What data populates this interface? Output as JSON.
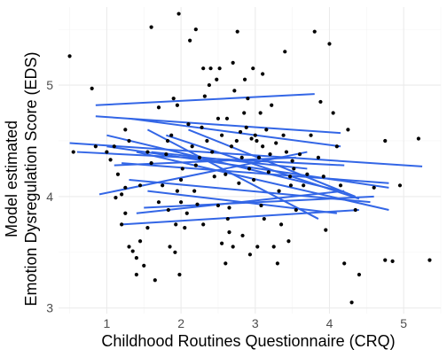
{
  "chart_data": {
    "type": "scatter",
    "title": "",
    "xlabel": "Childhood Routines Questionnaire (CRQ)",
    "ylabel_lines": [
      "Model estimated",
      "Emotion Dysregulation Score (EDS)"
    ],
    "xlim": [
      0.35,
      5.5
    ],
    "ylim": [
      2.95,
      5.7
    ],
    "x_ticks": [
      1,
      2,
      3,
      4,
      5
    ],
    "y_ticks": [
      3,
      4,
      5
    ],
    "grid": true,
    "colors": {
      "points": "#000000",
      "lines": "#3366e6",
      "major_grid": "#ebebeb",
      "minor_grid": "#f4f4f4"
    },
    "points": [
      [
        0.5,
        5.26
      ],
      [
        0.8,
        4.97
      ],
      [
        0.85,
        4.45
      ],
      [
        1.0,
        4.4
      ],
      [
        1.05,
        4.33
      ],
      [
        1.1,
        4.45
      ],
      [
        1.12,
        3.99
      ],
      [
        1.15,
        4.2
      ],
      [
        1.2,
        4.02
      ],
      [
        1.25,
        3.85
      ],
      [
        1.3,
        4.5
      ],
      [
        1.25,
        4.08
      ],
      [
        1.25,
        4.6
      ],
      [
        1.2,
        3.75
      ],
      [
        1.3,
        3.55
      ],
      [
        1.35,
        3.51
      ],
      [
        1.4,
        3.45
      ],
      [
        1.45,
        4.1
      ],
      [
        1.4,
        3.3
      ],
      [
        1.45,
        3.6
      ],
      [
        1.5,
        3.38
      ],
      [
        1.55,
        4.4
      ],
      [
        1.55,
        3.72
      ],
      [
        1.6,
        5.52
      ],
      [
        1.6,
        4.3
      ],
      [
        1.65,
        3.25
      ],
      [
        1.7,
        4.8
      ],
      [
        1.7,
        3.95
      ],
      [
        1.75,
        4.1
      ],
      [
        1.8,
        4.38
      ],
      [
        1.82,
        4.5
      ],
      [
        1.83,
        3.88
      ],
      [
        1.85,
        3.55
      ],
      [
        1.87,
        4.55
      ],
      [
        1.9,
        4.88
      ],
      [
        1.92,
        3.5
      ],
      [
        1.93,
        3.75
      ],
      [
        1.95,
        4.05
      ],
      [
        1.95,
        4.82
      ],
      [
        1.97,
        5.64
      ],
      [
        1.98,
        3.3
      ],
      [
        2.0,
        4.15
      ],
      [
        2.0,
        3.95
      ],
      [
        2.02,
        4.25
      ],
      [
        2.05,
        3.72
      ],
      [
        2.08,
        3.85
      ],
      [
        2.1,
        4.65
      ],
      [
        2.12,
        5.4
      ],
      [
        2.15,
        4.45
      ],
      [
        2.18,
        4.05
      ],
      [
        2.2,
        5.5
      ],
      [
        2.2,
        4.28
      ],
      [
        2.22,
        3.93
      ],
      [
        2.25,
        4.35
      ],
      [
        2.28,
        4.62
      ],
      [
        2.3,
        5.15
      ],
      [
        2.3,
        3.75
      ],
      [
        2.32,
        4.9
      ],
      [
        2.35,
        4.5
      ],
      [
        2.38,
        5.0
      ],
      [
        2.4,
        5.15
      ],
      [
        2.42,
        4.4
      ],
      [
        2.45,
        4.18
      ],
      [
        2.48,
        5.05
      ],
      [
        2.5,
        4.7
      ],
      [
        2.5,
        3.92
      ],
      [
        2.52,
        5.15
      ],
      [
        2.55,
        4.55
      ],
      [
        2.55,
        3.58
      ],
      [
        2.6,
        4.2
      ],
      [
        2.6,
        3.4
      ],
      [
        2.62,
        4.7
      ],
      [
        2.63,
        3.8
      ],
      [
        2.65,
        3.68
      ],
      [
        2.65,
        3.9
      ],
      [
        2.68,
        4.45
      ],
      [
        2.7,
        5.2
      ],
      [
        2.7,
        3.55
      ],
      [
        2.72,
        4.95
      ],
      [
        2.75,
        4.5
      ],
      [
        2.76,
        5.48
      ],
      [
        2.78,
        4.12
      ],
      [
        2.8,
        4.58
      ],
      [
        2.82,
        4.35
      ],
      [
        2.83,
        3.65
      ],
      [
        2.85,
        4.75
      ],
      [
        2.86,
        5.05
      ],
      [
        2.88,
        4.62
      ],
      [
        2.9,
        4.88
      ],
      [
        2.92,
        4.25
      ],
      [
        2.93,
        3.48
      ],
      [
        2.95,
        4.52
      ],
      [
        2.97,
        5.15
      ],
      [
        2.98,
        4.15
      ],
      [
        3.0,
        4.55
      ],
      [
        3.02,
        4.5
      ],
      [
        3.03,
        3.55
      ],
      [
        3.05,
        4.35
      ],
      [
        3.07,
        4.75
      ],
      [
        3.08,
        3.92
      ],
      [
        3.1,
        5.1
      ],
      [
        3.1,
        4.45
      ],
      [
        3.12,
        3.8
      ],
      [
        3.15,
        4.6
      ],
      [
        3.18,
        4.22
      ],
      [
        3.2,
        4.38
      ],
      [
        3.22,
        4.82
      ],
      [
        3.25,
        3.55
      ],
      [
        3.28,
        4.48
      ],
      [
        3.3,
        3.4
      ],
      [
        3.32,
        4.05
      ],
      [
        3.35,
        3.75
      ],
      [
        3.38,
        4.55
      ],
      [
        3.4,
        5.3
      ],
      [
        3.42,
        4.4
      ],
      [
        3.45,
        3.6
      ],
      [
        3.47,
        4.18
      ],
      [
        3.48,
        4.1
      ],
      [
        3.5,
        4.32
      ],
      [
        3.52,
        4.25
      ],
      [
        3.55,
        3.88
      ],
      [
        3.6,
        4.38
      ],
      [
        3.65,
        4.1
      ],
      [
        3.7,
        4.2
      ],
      [
        3.75,
        4.55
      ],
      [
        3.8,
        5.48
      ],
      [
        3.85,
        4.35
      ],
      [
        3.88,
        4.85
      ],
      [
        3.92,
        4.18
      ],
      [
        3.95,
        3.7
      ],
      [
        4.0,
        5.37
      ],
      [
        4.05,
        4.75
      ],
      [
        4.1,
        4.45
      ],
      [
        4.15,
        4.1
      ],
      [
        4.2,
        3.4
      ],
      [
        4.25,
        4.6
      ],
      [
        4.3,
        3.05
      ],
      [
        4.35,
        3.88
      ],
      [
        4.4,
        3.3
      ],
      [
        4.6,
        4.08
      ],
      [
        4.75,
        4.5
      ],
      [
        4.75,
        3.43
      ],
      [
        4.85,
        3.42
      ],
      [
        4.95,
        4.1
      ],
      [
        5.2,
        4.52
      ],
      [
        5.35,
        3.43
      ],
      [
        0.55,
        4.4
      ]
    ],
    "lines": [
      [
        0.85,
        4.82,
        3.8,
        4.92
      ],
      [
        0.85,
        4.72,
        4.15,
        4.57
      ],
      [
        1.3,
        4.7,
        4.15,
        4.45
      ],
      [
        0.5,
        4.48,
        5.25,
        4.27
      ],
      [
        0.6,
        4.4,
        4.2,
        4.28
      ],
      [
        1.0,
        4.45,
        4.8,
        4.08
      ],
      [
        1.2,
        4.3,
        4.8,
        4.12
      ],
      [
        1.0,
        4.55,
        4.15,
        4.05
      ],
      [
        1.4,
        4.4,
        4.8,
        3.88
      ],
      [
        1.1,
        4.28,
        3.55,
        4.35
      ],
      [
        1.3,
        4.15,
        4.55,
        3.95
      ],
      [
        1.55,
        4.6,
        3.85,
        3.8
      ],
      [
        1.8,
        4.55,
        4.4,
        3.98
      ],
      [
        1.55,
        4.05,
        4.1,
        3.85
      ],
      [
        1.5,
        3.9,
        4.6,
        4.0
      ],
      [
        1.4,
        3.85,
        4.2,
        4.05
      ],
      [
        1.2,
        3.75,
        4.4,
        3.88
      ],
      [
        0.9,
        4.02,
        3.7,
        4.4
      ],
      [
        1.6,
        4.4,
        3.7,
        4.25
      ],
      [
        2.1,
        4.6,
        4.35,
        4.0
      ]
    ]
  }
}
